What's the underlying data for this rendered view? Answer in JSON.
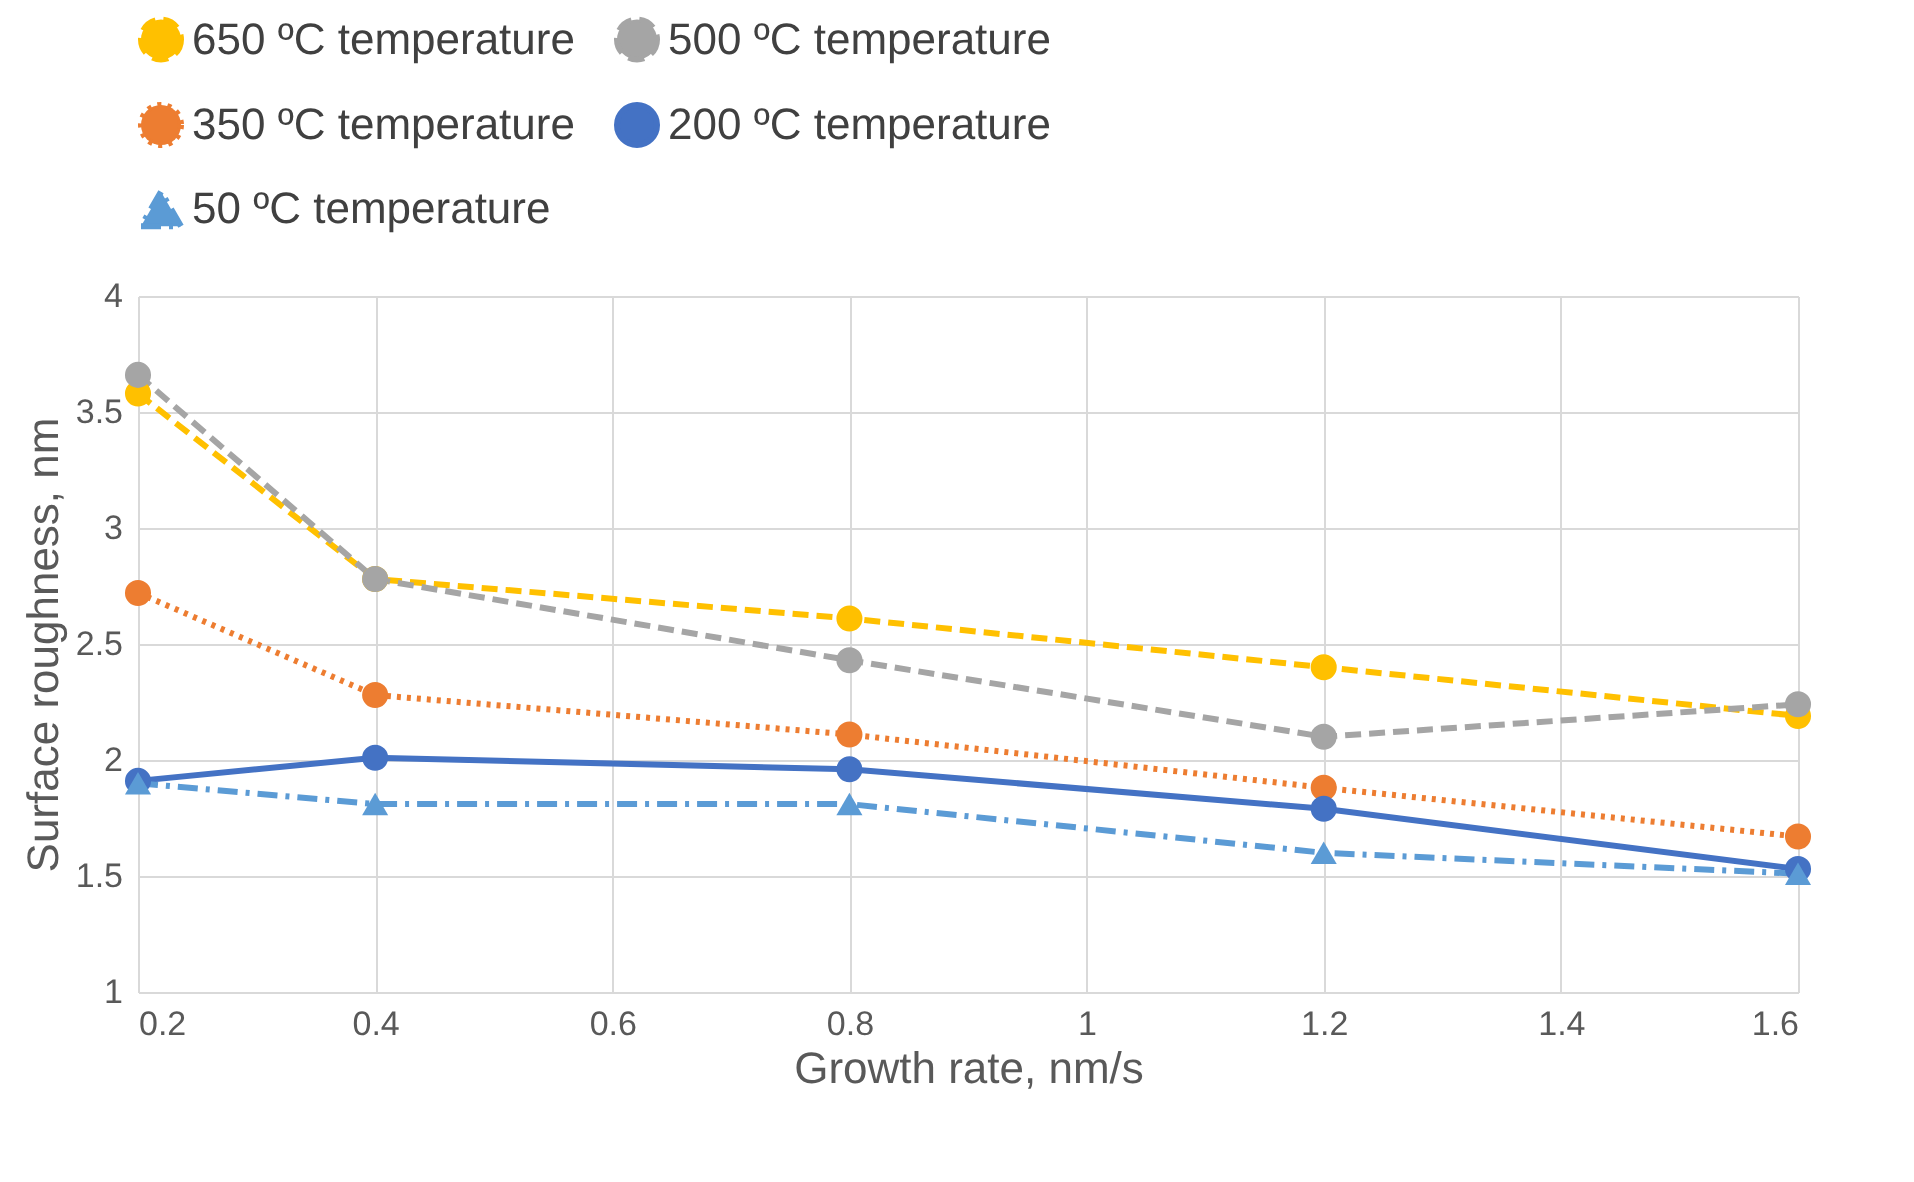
{
  "chart_data": {
    "type": "line",
    "xlabel": "Growth rate, nm/s",
    "ylabel": "Surface roughness, nm",
    "x": [
      0.2,
      0.4,
      0.8,
      1.2,
      1.6
    ],
    "series": [
      {
        "name": "650 ºC temperature",
        "color": "#ffc000",
        "values": [
          3.58,
          2.78,
          2.61,
          2.4,
          2.19
        ],
        "line_style": "dashed",
        "marker": "circle"
      },
      {
        "name": "500 ºC temperature",
        "color": "#a5a5a5",
        "values": [
          3.66,
          2.78,
          2.43,
          2.1,
          2.24
        ],
        "line_style": "dashed",
        "marker": "circle"
      },
      {
        "name": "350 ºC temperature",
        "color": "#ed7d31",
        "values": [
          2.72,
          2.28,
          2.11,
          1.88,
          1.67
        ],
        "line_style": "dotted",
        "marker": "circle"
      },
      {
        "name": "200 ºC temperature",
        "color": "#4472c4",
        "values": [
          1.91,
          2.01,
          1.96,
          1.79,
          1.53
        ],
        "line_style": "solid",
        "marker": "circle"
      },
      {
        "name": "50 ºC temperature",
        "color": "#5b9bd5",
        "values": [
          1.9,
          1.81,
          1.81,
          1.6,
          1.51
        ],
        "line_style": "dashdot",
        "marker": "triangle"
      }
    ],
    "xlim": [
      0.2,
      1.6
    ],
    "xticks": [
      0.2,
      0.4,
      0.6,
      0.8,
      1,
      1.2,
      1.4,
      1.6
    ],
    "ylim": [
      1,
      4
    ],
    "yticks": [
      1,
      1.5,
      2,
      2.5,
      3,
      3.5,
      4
    ],
    "grid": true,
    "legend": "top"
  }
}
